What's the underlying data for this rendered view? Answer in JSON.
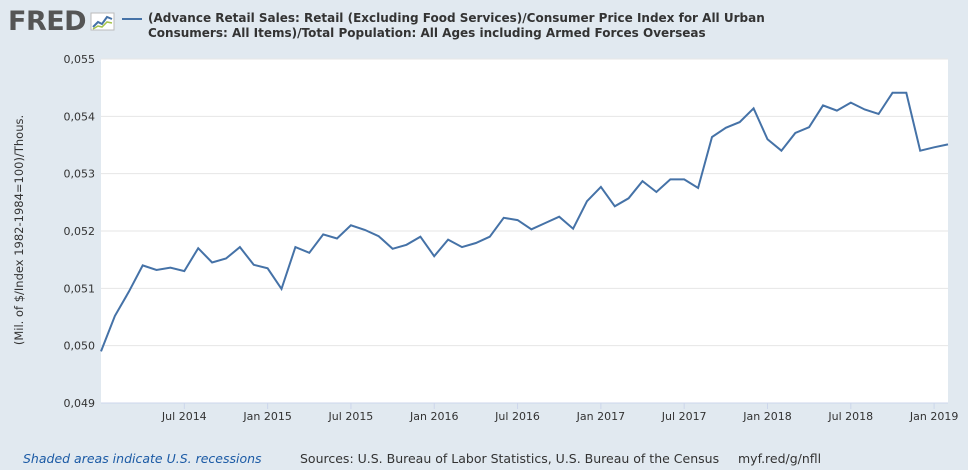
{
  "header": {
    "logo_text": "FRED",
    "legend_label": "(Advance Retail Sales: Retail (Excluding Food Services)/Consumer Price Index for All Urban Consumers: All Items)/Total Population: All Ages including Armed Forces Overseas",
    "legend_color": "#4572a7"
  },
  "footer": {
    "recession_note": "Shaded areas indicate U.S. recessions",
    "sources": "Sources: U.S. Bureau of Labor Statistics, U.S. Bureau of the Census",
    "shortlink": "myf.red/g/nfll"
  },
  "chart_data": {
    "type": "line",
    "title": "",
    "xlabel": "",
    "ylabel": "(Mil. of $/Index 1982-1984=100)/Thous.",
    "ylim": [
      0.049,
      0.055
    ],
    "yticks": [
      "0,049",
      "0,050",
      "0,051",
      "0,052",
      "0,053",
      "0,054",
      "0,055"
    ],
    "xticks": [
      {
        "label": "Jul 2014",
        "date": "2014-07"
      },
      {
        "label": "Jan 2015",
        "date": "2015-01"
      },
      {
        "label": "Jul 2015",
        "date": "2015-07"
      },
      {
        "label": "Jan 2016",
        "date": "2016-01"
      },
      {
        "label": "Jul 2016",
        "date": "2016-07"
      },
      {
        "label": "Jan 2017",
        "date": "2017-01"
      },
      {
        "label": "Jul 2017",
        "date": "2017-07"
      },
      {
        "label": "Jan 2018",
        "date": "2018-01"
      },
      {
        "label": "Jul 2018",
        "date": "2018-07"
      },
      {
        "label": "Jan 2019",
        "date": "2019-01"
      }
    ],
    "x_start": "2014-01",
    "x_end": "2019-02",
    "grid": true,
    "series_color": "#4572a7",
    "series": [
      {
        "x": [
          "2014-01",
          "2014-02",
          "2014-03",
          "2014-04",
          "2014-05",
          "2014-06",
          "2014-07",
          "2014-08",
          "2014-09",
          "2014-10",
          "2014-11",
          "2014-12",
          "2015-01",
          "2015-02",
          "2015-03",
          "2015-04",
          "2015-05",
          "2015-06",
          "2015-07",
          "2015-08",
          "2015-09",
          "2015-10",
          "2015-11",
          "2015-12",
          "2016-01",
          "2016-02",
          "2016-03",
          "2016-04",
          "2016-05",
          "2016-06",
          "2016-07",
          "2016-08",
          "2016-09",
          "2016-10",
          "2016-11",
          "2016-12",
          "2017-01",
          "2017-02",
          "2017-03",
          "2017-04",
          "2017-05",
          "2017-06",
          "2017-07",
          "2017-08",
          "2017-09",
          "2017-10",
          "2017-11",
          "2017-12",
          "2018-01",
          "2018-02",
          "2018-03",
          "2018-04",
          "2018-05",
          "2018-06",
          "2018-07",
          "2018-08",
          "2018-09",
          "2018-10",
          "2018-11",
          "2018-12",
          "2019-01",
          "2019-02"
        ],
        "values": [
          0.0499,
          0.05052,
          0.05094,
          0.0514,
          0.05132,
          0.05136,
          0.0513,
          0.0517,
          0.05145,
          0.05152,
          0.05172,
          0.05141,
          0.05135,
          0.05099,
          0.05172,
          0.05162,
          0.05194,
          0.05187,
          0.0521,
          0.05202,
          0.05191,
          0.05169,
          0.05176,
          0.0519,
          0.05156,
          0.05185,
          0.05172,
          0.05179,
          0.0519,
          0.05223,
          0.05219,
          0.05203,
          0.05214,
          0.05225,
          0.05204,
          0.05252,
          0.05277,
          0.05243,
          0.05257,
          0.05287,
          0.05268,
          0.0529,
          0.0529,
          0.05275,
          0.05364,
          0.0538,
          0.0539,
          0.05414,
          0.0536,
          0.0534,
          0.05371,
          0.05381,
          0.05419,
          0.0541,
          0.05424,
          0.05412,
          0.05404,
          0.05441,
          0.05441,
          0.0534,
          0.05346,
          0.05351
        ]
      }
    ]
  }
}
